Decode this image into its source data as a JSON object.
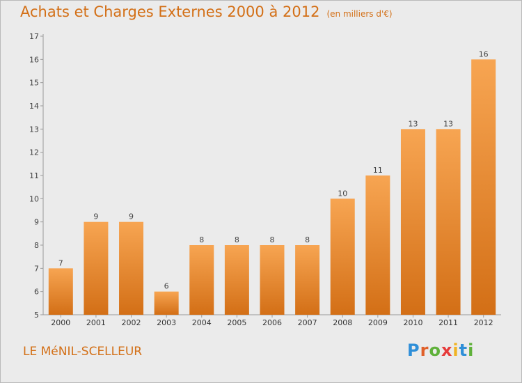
{
  "header": {
    "title": "Achats et Charges Externes 2000 à 2012",
    "subtitle": "(en milliers d'€)"
  },
  "footer": {
    "commune": "LE MéNIL-SCELLEUR",
    "brand": "Proxiti",
    "brand_letters": [
      {
        "char": "P",
        "color": "#2f8fd8"
      },
      {
        "char": "r",
        "color": "#e0602a"
      },
      {
        "char": "o",
        "color": "#5fb13a"
      },
      {
        "char": "x",
        "color": "#e63b3b"
      },
      {
        "char": "i",
        "color": "#f0b323"
      },
      {
        "char": "t",
        "color": "#2f8fd8"
      },
      {
        "char": "i",
        "color": "#5fb13a"
      }
    ]
  },
  "chart_data": {
    "type": "bar",
    "categories": [
      "2000",
      "2001",
      "2002",
      "2003",
      "2004",
      "2005",
      "2006",
      "2007",
      "2008",
      "2009",
      "2010",
      "2011",
      "2012"
    ],
    "values": [
      7,
      9,
      9,
      6,
      8,
      8,
      8,
      8,
      10,
      11,
      13,
      13,
      16
    ],
    "ylim": [
      5,
      17
    ],
    "yticks": [
      5,
      6,
      7,
      8,
      9,
      10,
      11,
      12,
      13,
      14,
      15,
      16,
      17
    ],
    "grid": false,
    "bar_color_top": "#f7a552",
    "bar_color_bottom": "#d36f16",
    "text_color": "#d36f16"
  }
}
